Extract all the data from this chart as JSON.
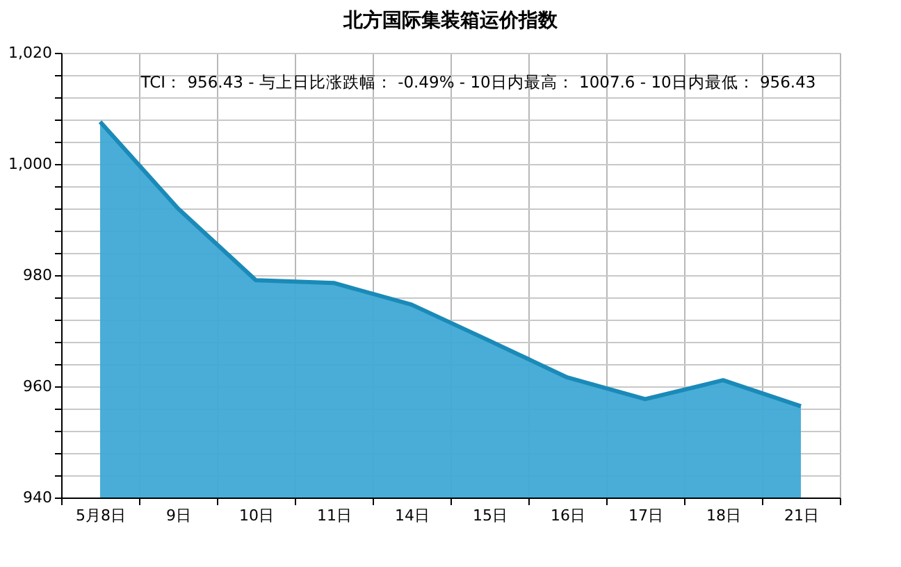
{
  "chart_data": {
    "type": "area",
    "title": "北方国际集装箱运价指数",
    "annotations": [
      "TCI：  956.43  - 与上日比涨跌幅：  -0.49%  - 10日内最高：  1007.6  - 10日内最低：  956.43"
    ],
    "categories": [
      "5月8日",
      "9日",
      "10日",
      "11日",
      "14日",
      "15日",
      "16日",
      "17日",
      "18日",
      "21日"
    ],
    "series": [
      {
        "color": "#3fa9d5",
        "values": [
          1007.6,
          992,
          979.1,
          978.6,
          974.7,
          968.2,
          961.6,
          957.7,
          961.1,
          956.43
        ]
      }
    ],
    "ylim": [
      940,
      1020
    ],
    "yticks": [
      940,
      {
        "value": 944,
        "label": null
      },
      {
        "value": 948,
        "label": null
      },
      {
        "value": 952,
        "label": null
      },
      {
        "value": 956,
        "label": null
      },
      960,
      {
        "value": 964,
        "label": null
      },
      {
        "value": 968,
        "label": null
      },
      {
        "value": 972,
        "label": null
      },
      {
        "value": 976,
        "label": null
      },
      980,
      {
        "value": 984,
        "label": null
      },
      {
        "value": 988,
        "label": null
      },
      {
        "value": 992,
        "label": null
      },
      {
        "value": 996,
        "label": null
      },
      {
        "value": 1000,
        "label": "1,000"
      },
      {
        "value": 1004,
        "label": null
      },
      {
        "value": 1008,
        "label": null
      },
      {
        "value": 1012,
        "label": null
      },
      {
        "value": 1016,
        "label": null
      },
      {
        "value": 1020,
        "label": "1,020"
      }
    ],
    "grid": true
  }
}
